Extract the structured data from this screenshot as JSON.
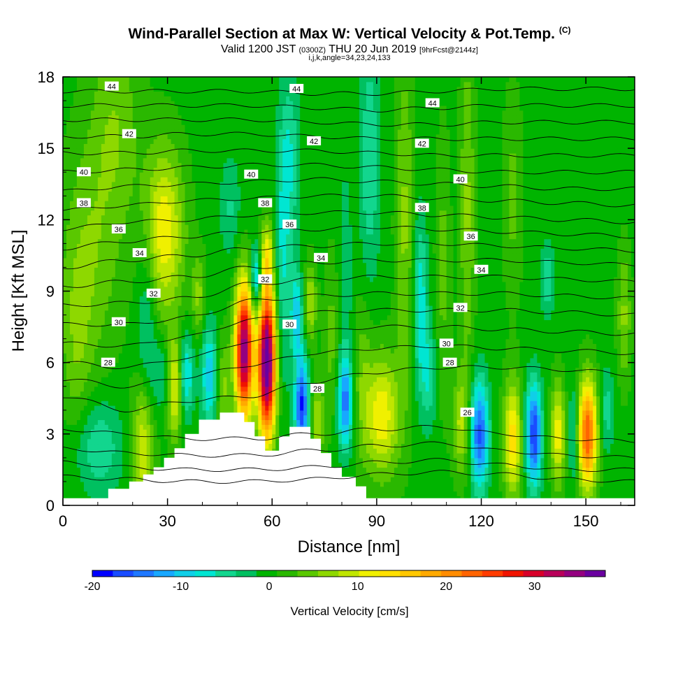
{
  "title": {
    "main": "Wind-Parallel Section at Max W: Vertical Velocity & Pot.Temp.",
    "mark": "(C)",
    "valid_prefix": "Valid 1200 JST",
    "valid_utc": "(0300Z)",
    "valid_date": "THU 20 Jun 2019",
    "forecast": "[9hrFcst@2144z]",
    "params": "i,j,k,angle=34,23,24,133"
  },
  "chart_data": {
    "type": "heatmap",
    "xlabel": "Distance [nm]",
    "ylabel": "Height [Kft MSL]",
    "xlim": [
      0,
      164
    ],
    "ylim": [
      0,
      18
    ],
    "xticks": [
      "0",
      "30",
      "60",
      "90",
      "120",
      "150"
    ],
    "xtick_values": [
      0,
      30,
      60,
      90,
      120,
      150
    ],
    "yticks": [
      "0",
      "3",
      "6",
      "9",
      "12",
      "15",
      "18"
    ],
    "ytick_values": [
      0,
      3,
      6,
      9,
      12,
      15,
      18
    ],
    "colorbar": {
      "title": "Vertical Velocity [cm/s]",
      "min": -20,
      "max": 38,
      "labels": [
        "-20",
        "-10",
        "0",
        "10",
        "20",
        "30"
      ],
      "label_values": [
        -20,
        -10,
        0,
        10,
        20,
        30
      ],
      "colors": [
        "#0000ff",
        "#1a4cff",
        "#1f78ff",
        "#18a8ff",
        "#10cfe8",
        "#00e6d2",
        "#12d68e",
        "#00c060",
        "#00b400",
        "#2ab800",
        "#5ac800",
        "#8ed800",
        "#c0e600",
        "#f0f000",
        "#ffe000",
        "#ffc800",
        "#ffaa00",
        "#ff8c00",
        "#ff6400",
        "#ff3c00",
        "#f01400",
        "#d8002a",
        "#b8005a",
        "#940080",
        "#6a00a0"
      ]
    },
    "background_w": 0,
    "terrain": {
      "x": [
        0,
        13,
        13,
        19,
        19,
        23,
        23,
        26,
        26,
        29,
        29,
        32,
        32,
        35,
        35,
        39,
        39,
        45,
        45,
        52,
        52,
        55,
        55,
        58,
        58,
        62,
        62,
        65,
        65,
        71,
        71,
        74,
        74,
        77,
        77,
        80,
        80,
        84,
        84,
        87,
        87,
        90,
        90,
        164
      ],
      "y": [
        0.3,
        0.3,
        0.7,
        0.7,
        1.0,
        1.0,
        1.3,
        1.3,
        1.6,
        1.6,
        2.0,
        2.0,
        2.4,
        2.4,
        3.0,
        3.0,
        3.6,
        3.6,
        3.9,
        3.9,
        3.5,
        3.5,
        2.9,
        2.9,
        2.3,
        2.3,
        2.9,
        2.9,
        3.3,
        3.3,
        2.8,
        2.8,
        2.2,
        2.2,
        1.6,
        1.6,
        1.2,
        1.2,
        0.8,
        0.8,
        0.3,
        0.3,
        0.3,
        0.3
      ]
    },
    "w_cells": [
      {
        "x": 10,
        "y": 2.5,
        "sx": 5,
        "sy": 1.4,
        "w": -6
      },
      {
        "x": 8,
        "y": 10.5,
        "sx": 6,
        "sy": 3.5,
        "w": 5
      },
      {
        "x": 15,
        "y": 16,
        "sx": 5,
        "sy": 3,
        "w": 5
      },
      {
        "x": 23,
        "y": 2.5,
        "sx": 2.2,
        "sy": 2.0,
        "w": 10
      },
      {
        "x": 24,
        "y": 8.0,
        "sx": 2.0,
        "sy": 2.5,
        "w": -5
      },
      {
        "x": 29,
        "y": 11.5,
        "sx": 4.0,
        "sy": 2.5,
        "w": 12
      },
      {
        "x": 28,
        "y": 5.5,
        "sx": 3.0,
        "sy": 1.2,
        "w": -4
      },
      {
        "x": 32,
        "y": 5.0,
        "sx": 1.5,
        "sy": 1.5,
        "w": 12
      },
      {
        "x": 35.5,
        "y": 5.5,
        "sx": 1.4,
        "sy": 1.2,
        "w": -9
      },
      {
        "x": 39,
        "y": 8.8,
        "sx": 1.4,
        "sy": 1.2,
        "w": 6
      },
      {
        "x": 42,
        "y": 5.5,
        "sx": 1.6,
        "sy": 1.5,
        "w": -10
      },
      {
        "x": 46,
        "y": 5.0,
        "sx": 1.4,
        "sy": 1.5,
        "w": 6
      },
      {
        "x": 48,
        "y": 12.5,
        "sx": 2,
        "sy": 1.5,
        "w": -4
      },
      {
        "x": 52,
        "y": 6.5,
        "sx": 1.8,
        "sy": 2.0,
        "w": 36
      },
      {
        "x": 55.5,
        "y": 9.5,
        "sx": 1.2,
        "sy": 1.0,
        "w": -12
      },
      {
        "x": 58.5,
        "y": 6.0,
        "sx": 1.8,
        "sy": 2.2,
        "w": 40
      },
      {
        "x": 58.5,
        "y": 10.5,
        "sx": 1.3,
        "sy": 1.0,
        "w": 10
      },
      {
        "x": 63,
        "y": 10.0,
        "sx": 1.5,
        "sy": 3.5,
        "w": -6
      },
      {
        "x": 68.5,
        "y": 4.2,
        "sx": 1.4,
        "sy": 1.4,
        "w": -18
      },
      {
        "x": 67,
        "y": 8.0,
        "sx": 1.2,
        "sy": 1.3,
        "w": -10
      },
      {
        "x": 65,
        "y": 14.5,
        "sx": 2,
        "sy": 2.5,
        "w": -6
      },
      {
        "x": 71,
        "y": 8.5,
        "sx": 1.2,
        "sy": 1.2,
        "w": 8
      },
      {
        "x": 73,
        "y": 3.5,
        "sx": 1.3,
        "sy": 1.2,
        "w": 8
      },
      {
        "x": 77,
        "y": 7.0,
        "sx": 1.5,
        "sy": 2.5,
        "w": 4
      },
      {
        "x": 81,
        "y": 4.3,
        "sx": 1.5,
        "sy": 1.3,
        "w": -14
      },
      {
        "x": 81,
        "y": 9.5,
        "sx": 1.2,
        "sy": 3.0,
        "w": -4
      },
      {
        "x": 86,
        "y": 5.5,
        "sx": 1.8,
        "sy": 2.5,
        "w": 4
      },
      {
        "x": 91.5,
        "y": 3.8,
        "sx": 3.5,
        "sy": 1.8,
        "w": 12
      },
      {
        "x": 88,
        "y": 14.5,
        "sx": 2,
        "sy": 3.5,
        "w": -6
      },
      {
        "x": 98,
        "y": 12,
        "sx": 1.8,
        "sy": 5,
        "w": 6
      },
      {
        "x": 102.5,
        "y": 8.5,
        "sx": 1.4,
        "sy": 2.5,
        "w": -8
      },
      {
        "x": 105,
        "y": 5.5,
        "sx": 1.5,
        "sy": 1.5,
        "w": -6
      },
      {
        "x": 109,
        "y": 10,
        "sx": 1.5,
        "sy": 4,
        "w": 4
      },
      {
        "x": 114,
        "y": 3.5,
        "sx": 1.6,
        "sy": 1.5,
        "w": 8
      },
      {
        "x": 116,
        "y": 12.5,
        "sx": 1.5,
        "sy": 5,
        "w": 6
      },
      {
        "x": 119.5,
        "y": 3.0,
        "sx": 1.8,
        "sy": 1.6,
        "w": -16
      },
      {
        "x": 129,
        "y": 2.8,
        "sx": 1.8,
        "sy": 1.7,
        "w": 14
      },
      {
        "x": 129,
        "y": 13,
        "sx": 2,
        "sy": 3,
        "w": 4
      },
      {
        "x": 133.5,
        "y": 3.0,
        "sx": 1.2,
        "sy": 1.5,
        "w": -6
      },
      {
        "x": 135.5,
        "y": 3.0,
        "sx": 1.3,
        "sy": 1.5,
        "w": -16
      },
      {
        "x": 139,
        "y": 9.5,
        "sx": 1.3,
        "sy": 1.0,
        "w": -6
      },
      {
        "x": 142,
        "y": 3.0,
        "sx": 1.4,
        "sy": 1.5,
        "w": 12
      },
      {
        "x": 146.5,
        "y": 3.0,
        "sx": 1.0,
        "sy": 1.5,
        "w": -6
      },
      {
        "x": 150.5,
        "y": 3.0,
        "sx": 1.9,
        "sy": 1.6,
        "w": 24
      },
      {
        "x": 156,
        "y": 4.0,
        "sx": 1.5,
        "sy": 1.2,
        "w": -5
      },
      {
        "x": 161,
        "y": 8.0,
        "sx": 1.4,
        "sy": 2.0,
        "w": 6
      },
      {
        "x": 4,
        "y": 6.5,
        "sx": 3,
        "sy": 3,
        "w": 4
      }
    ],
    "isentropes": [
      {
        "y": [
          1.2,
          1.1,
          1.0,
          1.0,
          1.1,
          1.3,
          1.4,
          1.3,
          1.1,
          1.0
        ]
      },
      {
        "y": [
          1.8,
          1.6,
          1.5,
          1.5,
          1.6,
          1.8,
          1.9,
          1.7,
          1.5,
          1.5
        ]
      },
      {
        "y": [
          2.4,
          2.2,
          2.1,
          2.1,
          2.3,
          2.5,
          2.6,
          2.3,
          2.1,
          2.0
        ]
      },
      {
        "y": [
          3.2,
          3.0,
          2.8,
          2.8,
          3.0,
          3.2,
          3.3,
          3.0,
          2.8,
          2.7
        ]
      },
      {
        "y": [
          4.6,
          4.0,
          4.4,
          4.6,
          5.2,
          5.6,
          5.8,
          5.8,
          5.7,
          5.5
        ]
      },
      {
        "y": [
          5.3,
          5.0,
          5.4,
          5.9,
          6.4,
          6.6,
          6.7,
          6.6,
          6.5,
          6.4
        ]
      },
      {
        "y": [
          6.0,
          5.8,
          6.2,
          6.9,
          7.3,
          7.5,
          7.5,
          7.4,
          7.3,
          7.2
        ]
      },
      {
        "y": [
          6.8,
          6.7,
          7.1,
          7.8,
          8.1,
          8.2,
          8.2,
          8.2,
          8.1,
          8.0
        ]
      },
      {
        "y": [
          7.6,
          7.6,
          7.9,
          8.6,
          8.8,
          8.9,
          8.9,
          8.9,
          8.8,
          8.7
        ]
      },
      {
        "y": [
          8.4,
          8.5,
          8.7,
          9.3,
          9.5,
          9.6,
          9.6,
          9.6,
          9.5,
          9.4
        ]
      },
      {
        "y": [
          9.2,
          9.4,
          9.6,
          10.0,
          10.2,
          10.3,
          10.3,
          10.3,
          10.2,
          10.1
        ]
      },
      {
        "y": [
          10.0,
          10.3,
          10.5,
          10.8,
          10.9,
          11.0,
          11.0,
          10.9,
          10.8,
          10.7
        ]
      },
      {
        "y": [
          10.8,
          11.1,
          11.3,
          11.5,
          11.6,
          11.7,
          11.6,
          11.5,
          11.4,
          11.3
        ]
      },
      {
        "y": [
          11.6,
          11.9,
          12.0,
          12.2,
          12.3,
          12.3,
          12.2,
          12.1,
          12.0,
          11.9
        ]
      },
      {
        "y": [
          12.4,
          12.6,
          12.8,
          12.9,
          13.0,
          13.0,
          12.9,
          12.8,
          12.7,
          12.6
        ]
      },
      {
        "y": [
          13.2,
          13.4,
          13.5,
          13.6,
          13.7,
          13.6,
          13.5,
          13.4,
          13.3,
          13.3
        ]
      },
      {
        "y": [
          14.0,
          14.1,
          14.2,
          14.3,
          14.3,
          14.2,
          14.1,
          14.0,
          14.0,
          14.0
        ]
      },
      {
        "y": [
          14.8,
          14.8,
          14.9,
          14.9,
          14.9,
          14.8,
          14.7,
          14.7,
          14.7,
          14.7
        ]
      },
      {
        "y": [
          15.5,
          15.5,
          15.6,
          15.6,
          15.5,
          15.4,
          15.4,
          15.4,
          15.4,
          15.4
        ]
      },
      {
        "y": [
          16.2,
          16.2,
          16.2,
          16.2,
          16.1,
          16.0,
          16.0,
          16.1,
          16.1,
          16.1
        ]
      },
      {
        "y": [
          16.8,
          16.8,
          16.8,
          16.8,
          16.7,
          16.6,
          16.7,
          16.8,
          16.8,
          16.8
        ]
      },
      {
        "y": [
          17.4,
          17.4,
          17.4,
          17.4,
          17.3,
          17.3,
          17.4,
          17.5,
          17.5,
          17.5
        ]
      }
    ],
    "isentrope_x": [
      0,
      18,
      36,
      54,
      72,
      90,
      108,
      126,
      144,
      164
    ],
    "contour_labels": [
      {
        "text": "44",
        "x": 14,
        "y": 17.6
      },
      {
        "text": "44",
        "x": 67,
        "y": 17.5
      },
      {
        "text": "44",
        "x": 106,
        "y": 16.9
      },
      {
        "text": "42",
        "x": 19,
        "y": 15.6
      },
      {
        "text": "42",
        "x": 72,
        "y": 15.3
      },
      {
        "text": "42",
        "x": 103,
        "y": 15.2
      },
      {
        "text": "40",
        "x": 6,
        "y": 14.0
      },
      {
        "text": "40",
        "x": 54,
        "y": 13.9
      },
      {
        "text": "40",
        "x": 114,
        "y": 13.7
      },
      {
        "text": "38",
        "x": 6,
        "y": 12.7
      },
      {
        "text": "38",
        "x": 58,
        "y": 12.7
      },
      {
        "text": "38",
        "x": 103,
        "y": 12.5
      },
      {
        "text": "36",
        "x": 16,
        "y": 11.6
      },
      {
        "text": "36",
        "x": 65,
        "y": 11.8
      },
      {
        "text": "36",
        "x": 117,
        "y": 11.3
      },
      {
        "text": "34",
        "x": 22,
        "y": 10.6
      },
      {
        "text": "34",
        "x": 74,
        "y": 10.4
      },
      {
        "text": "34",
        "x": 120,
        "y": 9.9
      },
      {
        "text": "32",
        "x": 26,
        "y": 8.9
      },
      {
        "text": "32",
        "x": 58,
        "y": 9.5
      },
      {
        "text": "32",
        "x": 114,
        "y": 8.3
      },
      {
        "text": "30",
        "x": 16,
        "y": 7.7
      },
      {
        "text": "30",
        "x": 65,
        "y": 7.6
      },
      {
        "text": "30",
        "x": 110,
        "y": 6.8
      },
      {
        "text": "28",
        "x": 13,
        "y": 6.0
      },
      {
        "text": "28",
        "x": 111,
        "y": 6.0
      },
      {
        "text": "28",
        "x": 73,
        "y": 4.9
      },
      {
        "text": "26",
        "x": 116,
        "y": 3.9
      }
    ]
  }
}
